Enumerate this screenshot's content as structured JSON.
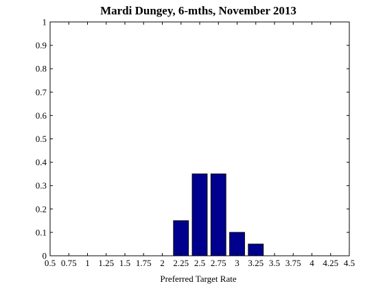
{
  "chart_data": {
    "type": "bar",
    "title": "Mardi Dungey, 6-mths, November 2013",
    "xlabel": "Preferred Target Rate",
    "ylabel": "",
    "x": [
      0.5,
      0.75,
      1,
      1.25,
      1.5,
      1.75,
      2,
      2.25,
      2.5,
      2.75,
      3,
      3.25,
      3.5,
      3.75,
      4,
      4.25,
      4.5
    ],
    "values": [
      0,
      0,
      0,
      0,
      0,
      0,
      0,
      0.15,
      0.35,
      0.35,
      0.1,
      0.05,
      0,
      0,
      0,
      0,
      0
    ],
    "xlim": [
      0.5,
      4.5
    ],
    "ylim": [
      0,
      1
    ],
    "x_tick_labels": [
      "0.5",
      "0.75",
      "1",
      "1.25",
      "1.5",
      "1.75",
      "2",
      "2.25",
      "2.5",
      "2.75",
      "3",
      "3.25",
      "3.5",
      "3.75",
      "4",
      "4.25",
      "4.5"
    ],
    "y_tick_labels": [
      "0",
      "0.1",
      "0.2",
      "0.3",
      "0.4",
      "0.5",
      "0.6",
      "0.7",
      "0.8",
      "0.9",
      "1"
    ],
    "bar_color": "#00008f",
    "grid": false
  }
}
